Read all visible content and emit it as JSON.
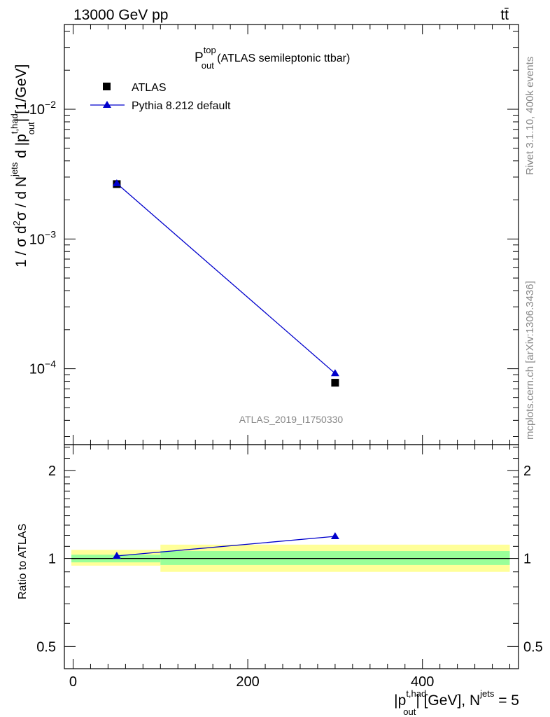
{
  "header": {
    "energy_label": "13000 GeV pp",
    "process_label": "tt̄"
  },
  "side": {
    "rivet_label": "Rivet 3.1.10,  400k events",
    "mcplots_label": "mcplots.cern.ch [arXiv:1306.3436]"
  },
  "plot_title": {
    "main": "P",
    "sup": "top",
    "sub": "out",
    "rest": " (ATLAS semileptonic ttbar)"
  },
  "legend": {
    "atlas": "ATLAS",
    "pythia": "Pythia 8.212 default"
  },
  "analysis_id": "ATLAS_2019_I1750330",
  "y_axis_label": {
    "p1": "1 / σ d",
    "s1": "2",
    "p2": "σ / d N",
    "s2": "jets",
    "p3": " d |p",
    "s3": "t,had",
    "b3": "out",
    "p4": "| [1/GeV]"
  },
  "x_axis_label": {
    "p1": "|p",
    "s1": "t,had",
    "b1": "out",
    "p2": "| [GeV], N",
    "s2": "jets",
    "p3": " = 5"
  },
  "ratio_label": "Ratio to ATLAS",
  "colors": {
    "mc": "#0000cc",
    "band_inner": "#99ff99",
    "band_outer": "#ffff99"
  },
  "chart_data": {
    "type": "scatter",
    "x_range": [
      -10,
      510
    ],
    "x_ticks": [
      {
        "value": 0,
        "label": "0"
      },
      {
        "value": 200,
        "label": "200"
      },
      {
        "value": 400,
        "label": "400"
      }
    ],
    "main": {
      "y_scale": "log",
      "y_range": [
        2.6e-05,
        0.045
      ],
      "y_ticks": [
        {
          "value": 0.0001,
          "base": "10",
          "exp": "−4"
        },
        {
          "value": 0.001,
          "base": "10",
          "exp": "−3"
        },
        {
          "value": 0.01,
          "base": "10",
          "exp": "−2"
        }
      ],
      "series": [
        {
          "name": "ATLAS",
          "marker": "square",
          "points": [
            {
              "x": 50,
              "y": 0.00265,
              "xlo": 0,
              "xhi": 100
            },
            {
              "x": 300,
              "y": 7.8e-05,
              "xlo": 100,
              "xhi": 500
            }
          ]
        },
        {
          "name": "Pythia 8.212 default",
          "marker": "triangle",
          "points": [
            {
              "x": 50,
              "y": 0.00268
            },
            {
              "x": 300,
              "y": 9.2e-05
            }
          ]
        }
      ]
    },
    "ratio": {
      "y_scale": "log",
      "y_range": [
        0.42,
        2.45
      ],
      "y_ticks": [
        {
          "value": 0.5,
          "label": "0.5"
        },
        {
          "value": 1,
          "label": "1"
        },
        {
          "value": 2,
          "label": "2"
        }
      ],
      "bands": [
        {
          "xlo": -2,
          "xhi": 100,
          "inner": [
            0.97,
            1.03
          ],
          "outer": [
            0.945,
            1.07
          ]
        },
        {
          "xlo": 100,
          "xhi": 500,
          "inner": [
            0.95,
            1.06
          ],
          "outer": [
            0.9,
            1.115
          ]
        }
      ],
      "mc_points": [
        {
          "x": 50,
          "y": 1.02,
          "err": 0.01
        },
        {
          "x": 300,
          "y": 1.19,
          "err": 0.025
        }
      ]
    }
  }
}
